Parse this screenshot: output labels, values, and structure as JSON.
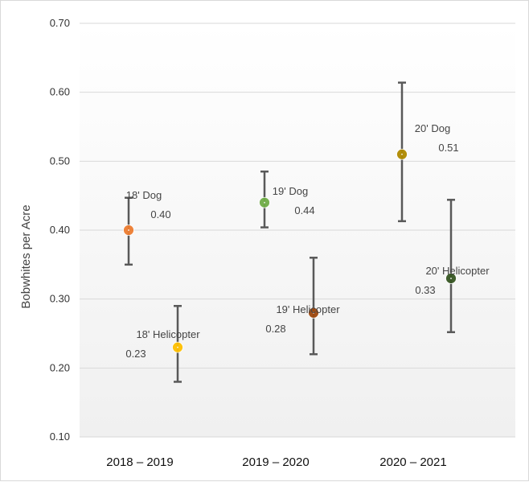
{
  "chart_data": {
    "type": "scatter",
    "title": "",
    "xlabel": "",
    "ylabel": "Bobwhites per Acre",
    "ylim": [
      0.1,
      0.7
    ],
    "yticks": [
      "0.10",
      "0.20",
      "0.30",
      "0.40",
      "0.50",
      "0.60",
      "0.70"
    ],
    "grid": true,
    "legend": "none",
    "categories": [
      "2018 – 2019",
      "2019 – 2020",
      "2020 – 2021"
    ],
    "series": [
      {
        "name": "Dog",
        "points": [
          {
            "category": "2018 – 2019",
            "y": 0.4,
            "low": 0.35,
            "high": 0.447,
            "name": "18' Dog",
            "label": "0.40",
            "color": "#ED7D31"
          },
          {
            "category": "2019 – 2020",
            "y": 0.44,
            "low": 0.404,
            "high": 0.485,
            "name": "19' Dog",
            "label": "0.44",
            "color": "#70AD47"
          },
          {
            "category": "2020 – 2021",
            "y": 0.51,
            "low": 0.413,
            "high": 0.614,
            "name": "20' Dog",
            "label": "0.51",
            "color": "#B08A00"
          }
        ]
      },
      {
        "name": "Helicopter",
        "points": [
          {
            "category": "2018 – 2019",
            "y": 0.23,
            "low": 0.18,
            "high": 0.29,
            "name": "18' Helicopter",
            "label": "0.23",
            "color": "#FFC000"
          },
          {
            "category": "2019 – 2020",
            "y": 0.28,
            "low": 0.22,
            "high": 0.36,
            "name": "19' Helicopter",
            "label": "0.28",
            "color": "#9E480E"
          },
          {
            "category": "2020 – 2021",
            "y": 0.33,
            "low": 0.252,
            "high": 0.444,
            "name": "20' Helicopter",
            "label": "0.33",
            "color": "#375623"
          }
        ]
      }
    ],
    "error_bar_color": "#595959"
  }
}
